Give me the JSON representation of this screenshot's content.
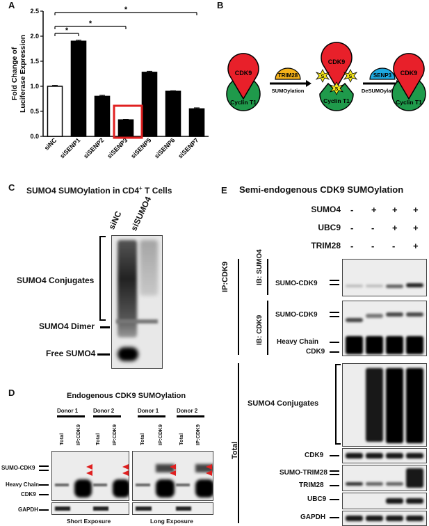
{
  "panels": {
    "A": {
      "letter": "A",
      "chart_data": {
        "type": "bar",
        "categories": [
          "siNC",
          "siSENP1",
          "siSENP2",
          "siSENP3",
          "siSENP5",
          "siSENP6",
          "siSENP7"
        ],
        "values": [
          1.0,
          1.9,
          0.8,
          0.33,
          1.28,
          0.9,
          0.55
        ],
        "errors": [
          0.02,
          0.02,
          0.02,
          0.01,
          0.02,
          0.01,
          0.02
        ],
        "title": "",
        "xlabel": "",
        "ylabel": "Fold Change of Luciferase Expression",
        "ylim": [
          0,
          2.5
        ],
        "yticks": [
          "0.0",
          "0.5",
          "1.0",
          "1.5",
          "2.0",
          "2.5"
        ],
        "significance": [
          "*",
          "*",
          "*"
        ],
        "highlight_category": "siSENP3",
        "colors": {
          "siNC": "#ffffff",
          "bars": "#000000",
          "highlight": "#e02020"
        }
      }
    },
    "B": {
      "letter": "B",
      "cdk9": "CDK9",
      "cyclin": "Cyclin T1",
      "trim28": "TRIM28",
      "senp3": "SENP3",
      "s": "S",
      "sumoylation": "SUMOylation",
      "desumoylation": "DeSUMOylation",
      "colors": {
        "cdk9": "#e8202a",
        "cyclin": "#1f9a4b",
        "trim28": "#f5b21a",
        "senp3": "#1ea9e0",
        "sumo": "#f5e61a"
      }
    },
    "C": {
      "letter": "C",
      "title": "SUMO4 SUMOylation in CD4",
      "title_sup": "+",
      "title_end": " T Cells",
      "lanes": [
        "siNC",
        "siSUMO4"
      ],
      "labels": {
        "conjugates": "SUMO4 Conjugates",
        "dimer": "SUMO4 Dimer",
        "free": "Free SUMO4"
      }
    },
    "D": {
      "letter": "D",
      "title": "Endogenous CDK9 SUMOylation",
      "donors": [
        "Donor 1",
        "Donor 2",
        "Donor 1",
        "Donor 2"
      ],
      "lanes": [
        "Total",
        "IP:CDK9"
      ],
      "labels": {
        "sumo_cdk9": "SUMO-CDK9",
        "heavy": "Heavy Chain",
        "cdk9": "CDK9",
        "gapdh": "GAPDH"
      },
      "exposures": [
        "Short Exposure",
        "Long Exposure"
      ]
    },
    "E": {
      "letter": "E",
      "title": "Semi-endogenous CDK9 SUMOylation",
      "conditions": {
        "SUMO4": [
          "-",
          "+",
          "+",
          "+"
        ],
        "UBC9": [
          "-",
          "-",
          "+",
          "+"
        ],
        "TRIM28": [
          "-",
          "-",
          "-",
          "+"
        ]
      },
      "row_names": [
        "SUMO4",
        "UBC9",
        "TRIM28"
      ],
      "ip": "IP:CDK9",
      "ib_sumo4": "IB: SUMO4",
      "ib_cdk9": "IB: CDK9",
      "total": "Total",
      "labels": {
        "sumo_cdk9": "SUMO-CDK9",
        "heavy": "Heavy Chain",
        "cdk9": "CDK9",
        "conjugates": "SUMO4 Conjugates",
        "sumo_trim28": "SUMO-TRIM28",
        "trim28": "TRIM28",
        "ubc9": "UBC9",
        "gapdh": "GAPDH"
      }
    }
  }
}
